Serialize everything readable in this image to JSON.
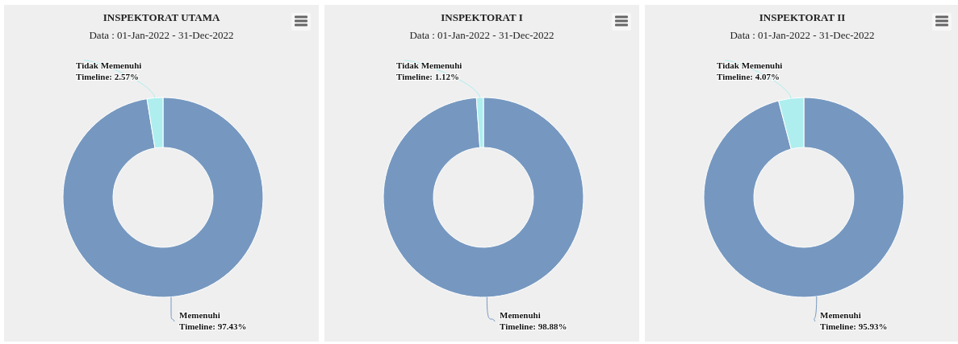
{
  "chart_data": [
    {
      "type": "donut",
      "title": "INSPEKTORAT UTAMA",
      "subtitle": "Data : 01-Jan-2022 - 31-Dec-2022",
      "categories": [
        "Memenuhi Timeline",
        "Tidak Memenuhi Timeline"
      ],
      "values": [
        97.43,
        2.57
      ],
      "value_labels": [
        "97.43%",
        "2.57%"
      ],
      "colors": [
        "#7698c0",
        "#aeeeee"
      ]
    },
    {
      "type": "donut",
      "title": "INSPEKTORAT I",
      "subtitle": "Data : 01-Jan-2022 - 31-Dec-2022",
      "categories": [
        "Memenuhi Timeline",
        "Tidak Memenuhi Timeline"
      ],
      "values": [
        98.88,
        1.12
      ],
      "value_labels": [
        "98.88%",
        "1.12%"
      ],
      "colors": [
        "#7698c0",
        "#aeeeee"
      ]
    },
    {
      "type": "donut",
      "title": "INSPEKTORAT II",
      "subtitle": "Data : 01-Jan-2022 - 31-Dec-2022",
      "categories": [
        "Memenuhi Timeline",
        "Tidak Memenuhi Timeline"
      ],
      "values": [
        95.93,
        4.07
      ],
      "value_labels": [
        "95.93%",
        "4.07%"
      ],
      "colors": [
        "#7698c0",
        "#aeeeee"
      ]
    }
  ]
}
